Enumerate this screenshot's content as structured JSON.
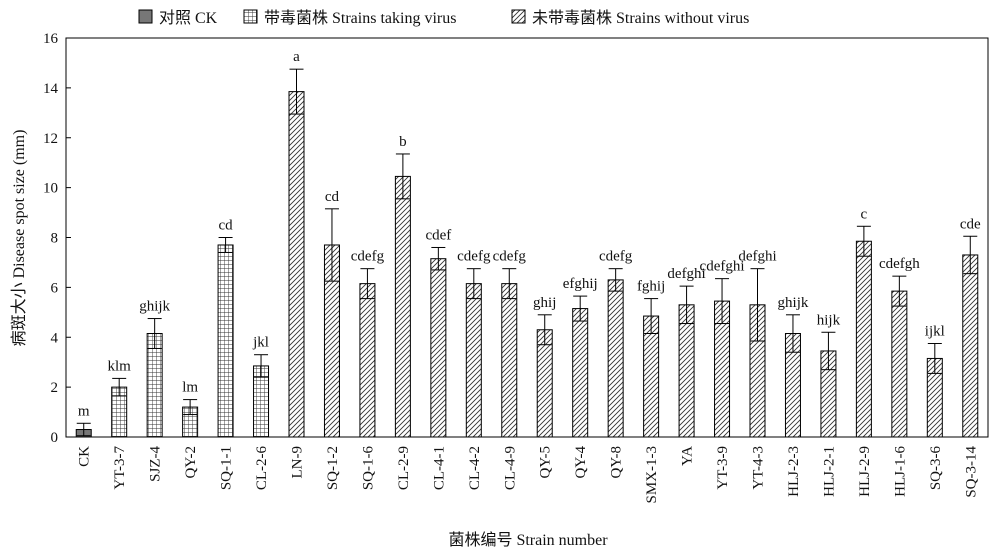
{
  "chart_data": {
    "type": "bar",
    "xlabel": "菌株编号 Strain number",
    "ylabel": "病斑大小 Disease spot size (mm)",
    "ylim": [
      0,
      16
    ],
    "yticks": [
      0,
      2,
      4,
      6,
      8,
      10,
      12,
      14,
      16
    ],
    "grid": false,
    "legend_position": "top",
    "legend": [
      {
        "key": "ck",
        "label": "对照 CK",
        "pattern": "solid-gray"
      },
      {
        "key": "taking",
        "label": "带毒菌株 Strains taking virus",
        "pattern": "grid"
      },
      {
        "key": "without",
        "label": "未带毒菌株 Strains without virus",
        "pattern": "diagonal"
      }
    ],
    "categories": [
      "CK",
      "YT-3-7",
      "SJZ-4",
      "QY-2",
      "SQ-1-1",
      "CL-2-6",
      "LN-9",
      "SQ-1-2",
      "SQ-1-6",
      "CL-2-9",
      "CL-4-1",
      "CL-4-2",
      "CL-4-9",
      "QY-5",
      "QY-4",
      "QY-8",
      "SMX-1-3",
      "YA",
      "YT-3-9",
      "YT-4-3",
      "HLJ-2-3",
      "HLJ-2-1",
      "HLJ-2-9",
      "HLJ-1-6",
      "SQ-3-6",
      "SQ-3-14"
    ],
    "groups": [
      "ck",
      "taking",
      "taking",
      "taking",
      "taking",
      "taking",
      "without",
      "without",
      "without",
      "without",
      "without",
      "without",
      "without",
      "without",
      "without",
      "without",
      "without",
      "without",
      "without",
      "without",
      "without",
      "without",
      "without",
      "without",
      "without",
      "without"
    ],
    "values": [
      0.3,
      2.0,
      4.15,
      1.2,
      7.7,
      2.85,
      13.85,
      7.7,
      6.15,
      10.45,
      7.15,
      6.15,
      6.15,
      4.3,
      5.15,
      6.3,
      4.85,
      5.3,
      5.45,
      5.3,
      4.15,
      3.45,
      7.85,
      5.85,
      3.15,
      7.3
    ],
    "errors": [
      0.25,
      0.35,
      0.6,
      0.3,
      0.3,
      0.45,
      0.9,
      1.45,
      0.6,
      0.9,
      0.45,
      0.6,
      0.6,
      0.6,
      0.5,
      0.45,
      0.7,
      0.75,
      0.9,
      1.45,
      0.75,
      0.75,
      0.6,
      0.6,
      0.6,
      0.75
    ],
    "significance": [
      "m",
      "klm",
      "ghijk",
      "lm",
      "cd",
      "jkl",
      "a",
      "cd",
      "cdefg",
      "b",
      "cdef",
      "cdefg",
      "cdefg",
      "ghij",
      "efghij",
      "cdefg",
      "fghij",
      "defghi",
      "cdefghi",
      "defghi",
      "ghijk",
      "hijk",
      "c",
      "cdefgh",
      "ijkl",
      "cde"
    ]
  }
}
